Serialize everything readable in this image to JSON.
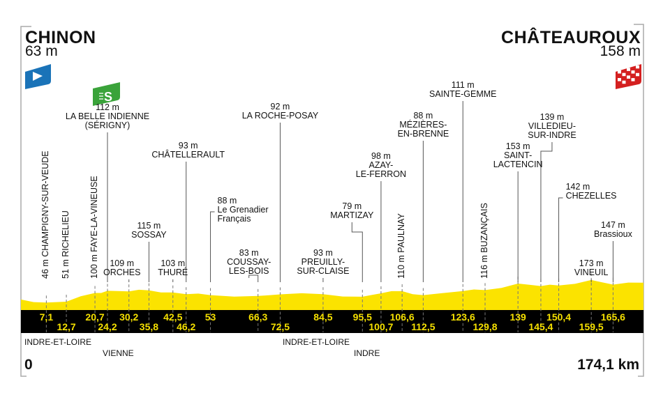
{
  "start": {
    "city": "CHINON",
    "altitude": "63 m",
    "icon": "start-flag-icon",
    "color": "#1a73b8"
  },
  "finish": {
    "city": "CHÂTEAUROUX",
    "altitude": "158 m",
    "icon": "checkered-finish-flag-icon",
    "color": "#d42020"
  },
  "sprint_icon": {
    "icon": "intermediate-sprint-icon",
    "letter": "S",
    "color": "#3aa33a"
  },
  "distance": {
    "start": "0",
    "total": "174,1 km"
  },
  "regions": [
    "INDRE-ET-LOIRE",
    "VIENNE",
    "INDRE-ET-LOIRE",
    "INDRE"
  ],
  "colors": {
    "profile": "#fbe300",
    "band": "#000000",
    "km_text": "#f5e000"
  },
  "chart_data": {
    "type": "area",
    "xlim": [
      0,
      174.1
    ],
    "x_unit": "km",
    "y_unit": "m",
    "waypoints": [
      {
        "km": 7.1,
        "km_label": "7,1",
        "altitude": "46 m",
        "name": [
          "CHAMPIGNY-SUR-VEUDE"
        ]
      },
      {
        "km": 12.7,
        "km_label": "12,7",
        "altitude": "51 m",
        "name": [
          "RICHELIEU"
        ]
      },
      {
        "km": 20.7,
        "km_label": "20,7",
        "altitude": "100 m",
        "name": [
          "FAYE-LA-VINEUSE"
        ]
      },
      {
        "km": 24.2,
        "km_label": "24,2",
        "altitude": "112 m",
        "name": [
          "LA BELLE INDIENNE",
          "(SÉRIGNY)"
        ],
        "sprint": true
      },
      {
        "km": 30.2,
        "km_label": "30,2",
        "altitude": "109 m",
        "name": [
          "ORCHES"
        ]
      },
      {
        "km": 35.8,
        "km_label": "35,8",
        "altitude": "115 m",
        "name": [
          "SOSSAY"
        ]
      },
      {
        "km": 42.5,
        "km_label": "42,5",
        "altitude": "103 m",
        "name": [
          "THURÉ"
        ]
      },
      {
        "km": 46.2,
        "km_label": "46,2",
        "altitude": "93 m",
        "name": [
          "CHÂTELLERAULT"
        ]
      },
      {
        "km": 53,
        "km_label": "53",
        "altitude": "88 m",
        "name": [
          "Le Grenadier",
          "Français"
        ]
      },
      {
        "km": 66.3,
        "km_label": "66,3",
        "altitude": "83 m",
        "name": [
          "COUSSAY-",
          "LES-BOIS"
        ]
      },
      {
        "km": 72.5,
        "km_label": "72,5",
        "altitude": "92 m",
        "name": [
          "LA ROCHE-POSAY"
        ]
      },
      {
        "km": 84.5,
        "km_label": "84,5",
        "altitude": "93 m",
        "name": [
          "PREUILLY-",
          "SUR-CLAISE"
        ]
      },
      {
        "km": 95.5,
        "km_label": "95,5",
        "altitude": "79 m",
        "name": [
          "MARTIZAY"
        ]
      },
      {
        "km": 100.7,
        "km_label": "100,7",
        "altitude": "98 m",
        "name": [
          "AZAY-",
          "LE-FERRON"
        ]
      },
      {
        "km": 106.6,
        "km_label": "106,6",
        "altitude": "110 m",
        "name": [
          "PAULNAY"
        ]
      },
      {
        "km": 112.5,
        "km_label": "112,5",
        "altitude": "88 m",
        "name": [
          "MÉZIÈRES-",
          "EN-BRENNE"
        ]
      },
      {
        "km": 123.6,
        "km_label": "123,6",
        "altitude": "111 m",
        "name": [
          "SAINTE-GEMME"
        ]
      },
      {
        "km": 129.8,
        "km_label": "129,8",
        "altitude": "116 m",
        "name": [
          "BUZANÇAIS"
        ]
      },
      {
        "km": 139,
        "km_label": "139",
        "altitude": "153 m",
        "name": [
          "SAINT-",
          "LACTENCIN"
        ]
      },
      {
        "km": 145.4,
        "km_label": "145,4",
        "altitude": "139 m",
        "name": [
          "VILLEDIEU-",
          "SUR-INDRE"
        ]
      },
      {
        "km": 150.4,
        "km_label": "150,4",
        "altitude": "142 m",
        "name": [
          "CHEZELLES"
        ]
      },
      {
        "km": 159.5,
        "km_label": "159,5",
        "altitude": "173 m",
        "name": [
          "VINEUIL"
        ]
      },
      {
        "km": 165.6,
        "km_label": "165,6",
        "altitude": "147 m",
        "name": [
          "Brassioux"
        ]
      }
    ]
  }
}
